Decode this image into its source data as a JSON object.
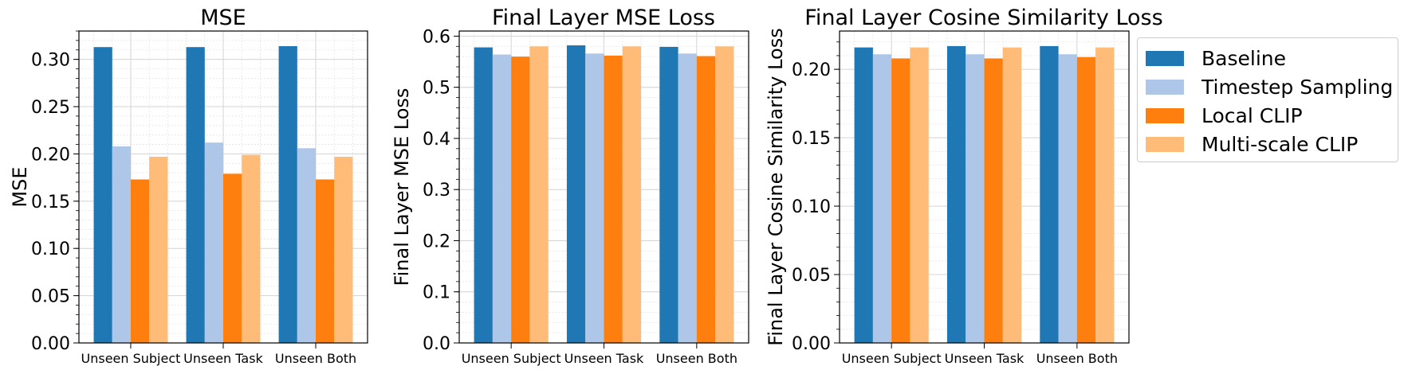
{
  "colors": {
    "Baseline": "#1f77b4",
    "Timestep Sampling": "#aec7e8",
    "Local CLIP": "#ff7f0e",
    "Multi-scale CLIP": "#ffbb78"
  },
  "legend": {
    "placement": "right, outside plots",
    "entries": [
      "Baseline",
      "Timestep Sampling",
      "Local CLIP",
      "Multi-scale CLIP"
    ]
  },
  "chart_data": [
    {
      "type": "bar",
      "title": "MSE",
      "xlabel": "",
      "ylabel": "MSE",
      "categories": [
        "Unseen Subject",
        "Unseen Task",
        "Unseen Both"
      ],
      "ylim": [
        0,
        0.33
      ],
      "yticks": [
        0.0,
        0.05,
        0.1,
        0.15,
        0.2,
        0.25,
        0.3
      ],
      "ytick_labels": [
        "0.00",
        "0.05",
        "0.10",
        "0.15",
        "0.20",
        "0.25",
        "0.30"
      ],
      "minor_ticks": true,
      "grid": "major and minor",
      "series": [
        {
          "name": "Baseline",
          "values": [
            0.313,
            0.313,
            0.314
          ]
        },
        {
          "name": "Timestep Sampling",
          "values": [
            0.208,
            0.212,
            0.206
          ]
        },
        {
          "name": "Local CLIP",
          "values": [
            0.173,
            0.179,
            0.173
          ]
        },
        {
          "name": "Multi-scale CLIP",
          "values": [
            0.197,
            0.199,
            0.197
          ]
        }
      ]
    },
    {
      "type": "bar",
      "title": "Final Layer MSE Loss",
      "xlabel": "",
      "ylabel": "Final Layer MSE Loss",
      "categories": [
        "Unseen Subject",
        "Unseen Task",
        "Unseen Both"
      ],
      "ylim": [
        0,
        0.61
      ],
      "yticks": [
        0.0,
        0.1,
        0.2,
        0.3,
        0.4,
        0.5,
        0.6
      ],
      "ytick_labels": [
        "0.0",
        "0.1",
        "0.2",
        "0.3",
        "0.4",
        "0.5",
        "0.6"
      ],
      "minor_ticks": true,
      "grid": "major and minor",
      "series": [
        {
          "name": "Baseline",
          "values": [
            0.578,
            0.582,
            0.579
          ]
        },
        {
          "name": "Timestep Sampling",
          "values": [
            0.564,
            0.566,
            0.566
          ]
        },
        {
          "name": "Local CLIP",
          "values": [
            0.56,
            0.562,
            0.561
          ]
        },
        {
          "name": "Multi-scale CLIP",
          "values": [
            0.58,
            0.58,
            0.58
          ]
        }
      ]
    },
    {
      "type": "bar",
      "title": "Final Layer Cosine Similarity Loss",
      "xlabel": "",
      "ylabel": "Final Layer Cosine Similarity Loss",
      "categories": [
        "Unseen Subject",
        "Unseen Task",
        "Unseen Both"
      ],
      "ylim": [
        0,
        0.228
      ],
      "yticks": [
        0.0,
        0.05,
        0.1,
        0.15,
        0.2
      ],
      "ytick_labels": [
        "0.00",
        "0.05",
        "0.10",
        "0.15",
        "0.20"
      ],
      "minor_ticks": true,
      "grid": "major and minor",
      "series": [
        {
          "name": "Baseline",
          "values": [
            0.216,
            0.217,
            0.217
          ]
        },
        {
          "name": "Timestep Sampling",
          "values": [
            0.211,
            0.211,
            0.211
          ]
        },
        {
          "name": "Local CLIP",
          "values": [
            0.208,
            0.208,
            0.209
          ]
        },
        {
          "name": "Multi-scale CLIP",
          "values": [
            0.216,
            0.216,
            0.216
          ]
        }
      ]
    }
  ]
}
